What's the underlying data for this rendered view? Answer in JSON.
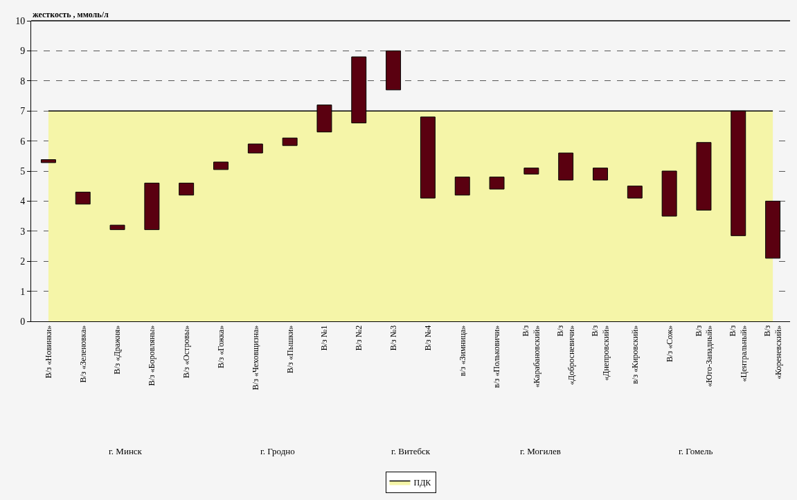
{
  "chart_data": {
    "type": "bar",
    "ylabel": "жесткость , ммоль/л",
    "categories": [
      "В/з «Новинки»",
      "В/з «Зеленовка»",
      "В/з «Дражня»",
      "В/з «Боровляны»",
      "В/з «Островы»",
      "В/з «Гожка»",
      "В/з «Чеховщизна»",
      "В/з «Пышки»",
      "В/з №1",
      "В/з №2",
      "В/з №3",
      "В/з №4",
      "в/з «Зимница»",
      "в/з «Польковичи»",
      "В/з «Карабановский»",
      "В/з «Добросневичи»",
      "В/з «Днепровский»",
      "в/з «Кировский»",
      "В/з «Сож»",
      "В/з «Юго-Западный»",
      "В/з «Центральный»",
      "В/з «Кореневский»"
    ],
    "series": [
      {
        "type": "area",
        "name": "ПДК",
        "color": "#f5f5a8",
        "values": [
          7,
          7,
          7,
          7,
          7,
          7,
          7,
          7,
          7,
          7,
          7,
          7,
          7,
          7,
          7,
          7,
          7,
          7,
          7,
          7,
          7,
          7
        ]
      },
      {
        "color": "#5a0010",
        "base": [
          5.28,
          3.9,
          3.05,
          3.05,
          4.2,
          5.05,
          5.6,
          5.85,
          6.3,
          6.6,
          7.7,
          4.1,
          4.2,
          4.4,
          4.9,
          4.7,
          4.7,
          4.1,
          3.5,
          3.7,
          2.85,
          2.1
        ],
        "values": [
          0.1,
          0.4,
          0.15,
          1.55,
          0.4,
          0.25,
          0.3,
          0.25,
          0.9,
          2.2,
          1.3,
          2.7,
          0.6,
          0.4,
          0.2,
          0.9,
          0.4,
          0.4,
          1.5,
          2.25,
          4.15,
          1.9
        ]
      }
    ],
    "annotations": [
      "г. Минск",
      "г. Гродно",
      "г. Витебск",
      "г. Могилев",
      "г. Гомель"
    ],
    "ylim": [
      0,
      10
    ],
    "yticks": [
      0,
      1,
      2,
      3,
      4,
      5,
      6,
      7,
      8,
      9,
      10
    ],
    "grid": "y",
    "legend": "bottom"
  }
}
